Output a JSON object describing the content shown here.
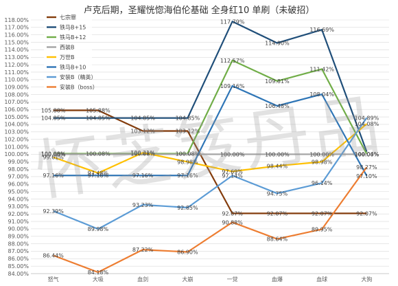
{
  "chart_data": {
    "type": "line",
    "title": "卢克后期，圣耀恍惚海伯伦基础 全身红10 单刷（未破招）",
    "watermark": "怀芝笈丹品",
    "categories": [
      "怒气",
      "大吸",
      "血剑",
      "大崩",
      "一觉",
      "血爆",
      "血球",
      "大狗"
    ],
    "ylim": [
      84.0,
      118.0
    ],
    "ytick_step": 1.0,
    "ytick_suffix": "%",
    "grid": true,
    "legend_position": "top-left",
    "series": [
      {
        "name": "七宗罪",
        "color": "#843c0c",
        "values": [
          105.88,
          105.88,
          103.12,
          103.12,
          92.07,
          92.07,
          92.07,
          92.07
        ],
        "labels": [
          "105.88%",
          "105.88%",
          "103.12%",
          "103.12%",
          "92.07%",
          "92.07%",
          "92.07%",
          "92.07%"
        ]
      },
      {
        "name": "铁马B+15",
        "color": "#1f4e79",
        "values": [
          104.85,
          104.85,
          104.85,
          104.85,
          117.79,
          114.9,
          116.69,
          100.33
        ],
        "labels": [
          "104.85%",
          "104.85%",
          "104.85%",
          "104.85%",
          "117.79%",
          "114.90%",
          "116.69%",
          ""
        ]
      },
      {
        "name": "铁马B+12",
        "color": "#70ad47",
        "values": [
          100.08,
          100.08,
          100.08,
          100.08,
          112.57,
          109.81,
          111.42,
          100.04
        ],
        "labels": [
          "100.08%",
          "100.08%",
          "100.08%",
          "100.08%",
          "112.57%",
          "109.81%",
          "111.42%",
          "100.04%"
        ]
      },
      {
        "name": "西装B",
        "color": "#a5a5a5",
        "values": [
          100.0,
          100.0,
          100.0,
          100.0,
          100.0,
          100.0,
          100.0,
          100.0
        ],
        "labels": [
          "100.00%",
          "",
          "",
          "",
          "100.00%",
          "100.00%",
          "100.00%",
          "100.00%"
        ]
      },
      {
        "name": "万世B",
        "color": "#ffc000",
        "values": [
          99.61,
          97.48,
          100.21,
          98.98,
          97.69,
          98.44,
          98.98,
          104.08
        ],
        "labels": [
          "99.61%",
          "97.48%",
          "100.21%",
          "98.98%",
          "97.69%",
          "98.44%",
          "98.98%",
          "104.08%"
        ]
      },
      {
        "name": "铁马B+10",
        "color": "#2e75b6",
        "values": [
          97.16,
          97.16,
          97.16,
          97.16,
          109.16,
          106.48,
          108.04,
          97.1
        ],
        "labels": [
          "97.16%",
          "97.16%",
          "97.16%",
          "97.16%",
          "109.16%",
          "106.48%",
          "108.04%",
          "97.10%"
        ]
      },
      {
        "name": "安装B（精英）",
        "color": "#5b9bd5",
        "values": [
          92.39,
          89.98,
          93.23,
          92.85,
          97.14,
          94.75,
          96.14,
          104.89
        ],
        "labels": [
          "92.39%",
          "89.98%",
          "93.23%",
          "92.85%",
          "97.14%",
          "94.75%",
          "96.14%",
          "104.89%"
        ]
      },
      {
        "name": "安装B（boss）",
        "color": "#ed7d31",
        "values": [
          86.44,
          84.18,
          87.22,
          86.9,
          90.88,
          88.64,
          89.95,
          98.27
        ],
        "labels": [
          "86.44%",
          "84.18%",
          "87.22%",
          "86.90%",
          "90.88%",
          "88.64%",
          "89.95%",
          "98.27%"
        ]
      }
    ]
  }
}
